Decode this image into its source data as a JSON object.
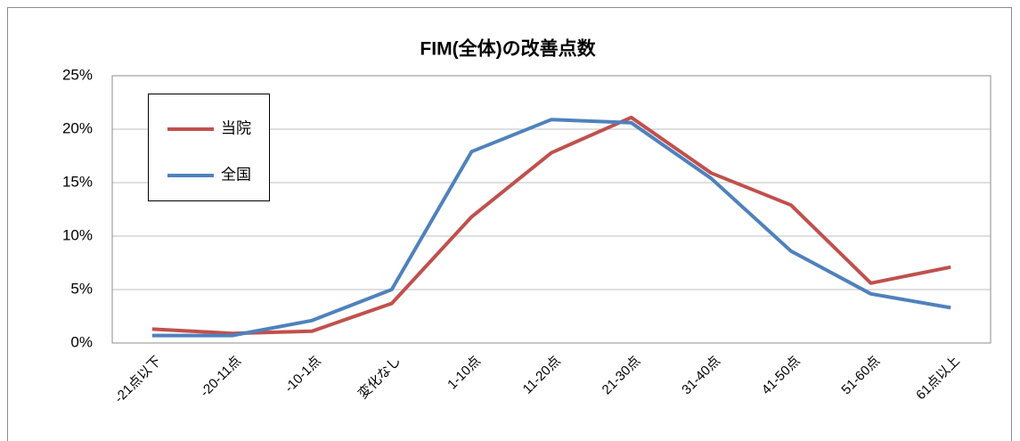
{
  "chart_data": {
    "type": "line",
    "title": "FIM(全体)の改善点数",
    "categories": [
      "-21点以下",
      "-20-11点",
      "-10-1点",
      "変化なし",
      "1-10点",
      "11-20点",
      "21-30点",
      "31-40点",
      "41-50点",
      "51-60点",
      "61点以上"
    ],
    "series": [
      {
        "name": "当院",
        "color": "#c0504d",
        "values": [
          1.3,
          0.9,
          1.1,
          3.7,
          11.8,
          17.8,
          21.1,
          15.9,
          12.9,
          5.6,
          7.1
        ]
      },
      {
        "name": "全国",
        "color": "#4f81bd",
        "values": [
          0.7,
          0.7,
          2.1,
          5.0,
          17.9,
          20.9,
          20.6,
          15.4,
          8.6,
          4.6,
          3.3
        ]
      }
    ],
    "ylim": [
      0,
      25
    ],
    "yticks": [
      {
        "value": 0,
        "label": "0%"
      },
      {
        "value": 5,
        "label": "5%"
      },
      {
        "value": 10,
        "label": "10%"
      },
      {
        "value": 15,
        "label": "15%"
      },
      {
        "value": 20,
        "label": "20%"
      },
      {
        "value": 25,
        "label": "25%"
      }
    ],
    "grid": true,
    "legend": "upper left"
  }
}
